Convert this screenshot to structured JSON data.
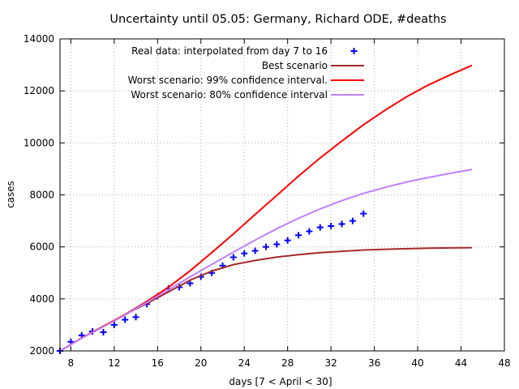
{
  "chart_data": {
    "type": "line",
    "title": "Uncertainty until 05.05: Germany, Richard ODE, #deaths",
    "xlabel": "days [7 < April < 30]",
    "ylabel": "cases",
    "xlim": [
      7,
      48
    ],
    "ylim": [
      2000,
      14000
    ],
    "xticks": [
      8,
      12,
      16,
      20,
      24,
      28,
      32,
      36,
      40,
      44,
      48
    ],
    "yticks": [
      2000,
      4000,
      6000,
      8000,
      10000,
      12000,
      14000
    ],
    "grid": true,
    "legend_position": "top-left",
    "series": [
      {
        "name": "Real data: interpolated from day 7 to 16",
        "kind": "scatter",
        "marker": "plus",
        "color": "#0000ff",
        "x": [
          7,
          8,
          9,
          10,
          11,
          12,
          13,
          14,
          15,
          16,
          17,
          18,
          19,
          20,
          21,
          22,
          23,
          24,
          25,
          26,
          27,
          28,
          29,
          30,
          31,
          32,
          33,
          34,
          35
        ],
        "y": [
          2000,
          2350,
          2600,
          2750,
          2720,
          3000,
          3200,
          3300,
          3800,
          4100,
          4400,
          4450,
          4600,
          4850,
          5000,
          5280,
          5600,
          5750,
          5850,
          6000,
          6100,
          6250,
          6450,
          6600,
          6750,
          6800,
          6880,
          7000,
          7280
        ]
      },
      {
        "name": "Best scenario",
        "kind": "line",
        "color": "#a52a2a",
        "x": [
          7,
          9,
          11,
          13,
          15,
          17,
          19,
          21,
          23,
          25,
          27,
          29,
          31,
          33,
          35,
          37,
          39,
          41,
          43,
          45
        ],
        "y": [
          2000,
          2490,
          2940,
          3400,
          3820,
          4270,
          4720,
          5070,
          5320,
          5480,
          5610,
          5700,
          5780,
          5830,
          5880,
          5910,
          5930,
          5950,
          5960,
          5970
        ]
      },
      {
        "name": "Worst scenario: 99% confidence interval.",
        "kind": "line",
        "color": "#ff0000",
        "x": [
          7,
          9,
          11,
          13,
          15,
          17,
          19,
          21,
          23,
          25,
          27,
          29,
          31,
          33,
          35,
          37,
          39,
          41,
          43,
          45
        ],
        "y": [
          2000,
          2500,
          2950,
          3400,
          3900,
          4450,
          5080,
          5780,
          6500,
          7250,
          7980,
          8720,
          9420,
          10070,
          10700,
          11260,
          11780,
          12230,
          12620,
          12980
        ]
      },
      {
        "name": "Worst scenario: 80% confidence interval",
        "kind": "line",
        "color": "#c080ff",
        "x": [
          7,
          9,
          11,
          13,
          15,
          17,
          19,
          21,
          23,
          25,
          27,
          29,
          31,
          33,
          35,
          37,
          39,
          41,
          43,
          45
        ],
        "y": [
          2000,
          2490,
          2930,
          3380,
          3860,
          4350,
          4850,
          5330,
          5800,
          6260,
          6700,
          7100,
          7460,
          7780,
          8060,
          8290,
          8500,
          8670,
          8830,
          8980
        ]
      }
    ]
  }
}
